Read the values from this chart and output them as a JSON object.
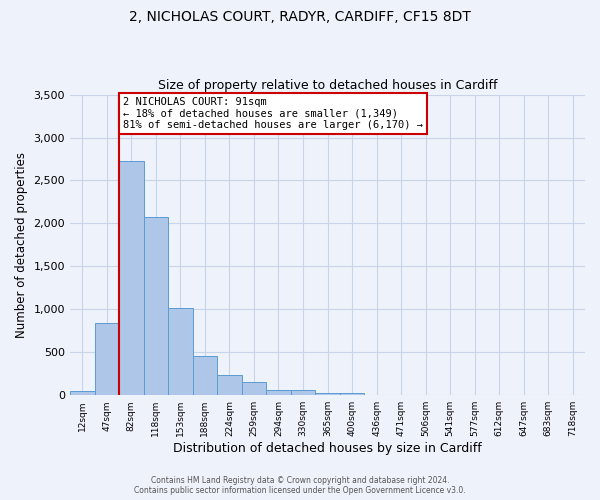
{
  "title_line1": "2, NICHOLAS COURT, RADYR, CARDIFF, CF15 8DT",
  "title_line2": "Size of property relative to detached houses in Cardiff",
  "xlabel": "Distribution of detached houses by size in Cardiff",
  "ylabel": "Number of detached properties",
  "bar_values": [
    50,
    840,
    2730,
    2075,
    1010,
    460,
    230,
    150,
    65,
    55,
    30,
    20,
    0,
    0,
    0,
    0,
    0,
    0,
    0,
    0
  ],
  "bin_labels": [
    "12sqm",
    "47sqm",
    "82sqm",
    "118sqm",
    "153sqm",
    "188sqm",
    "224sqm",
    "259sqm",
    "294sqm",
    "330sqm",
    "365sqm",
    "400sqm",
    "436sqm",
    "471sqm",
    "506sqm",
    "541sqm",
    "577sqm",
    "612sqm",
    "647sqm",
    "683sqm",
    "718sqm"
  ],
  "bar_color": "#aec6e8",
  "bar_edge_color": "#5b9bd5",
  "vline_color": "#cc0000",
  "annotation_title": "2 NICHOLAS COURT: 91sqm",
  "annotation_line1": "← 18% of detached houses are smaller (1,349)",
  "annotation_line2": "81% of semi-detached houses are larger (6,170) →",
  "annotation_box_color": "#cc0000",
  "ylim": [
    0,
    3500
  ],
  "yticks": [
    0,
    500,
    1000,
    1500,
    2000,
    2500,
    3000,
    3500
  ],
  "footer_line1": "Contains HM Land Registry data © Crown copyright and database right 2024.",
  "footer_line2": "Contains public sector information licensed under the Open Government Licence v3.0.",
  "bg_color": "#eef2fa",
  "grid_color": "#c8d4e8"
}
